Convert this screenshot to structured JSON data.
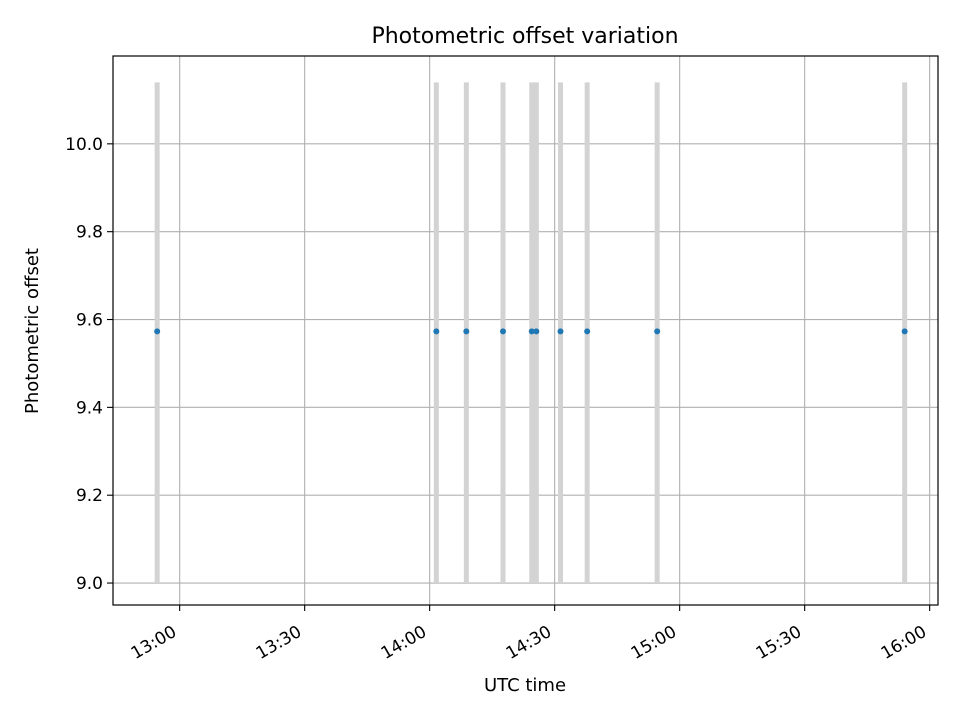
{
  "chart_data": {
    "type": "scatter",
    "title": "Photometric offset variation",
    "xlabel": "UTC time",
    "ylabel": "Photometric offset",
    "x_unit": "minutes_since_midnight_utc",
    "xlim": [
      12.7,
      16.0
    ],
    "xlim_minutes": [
      764,
      962
    ],
    "ylim": [
      8.95,
      10.2
    ],
    "grid": true,
    "x_ticks": [
      {
        "value": 780,
        "label": "13:00"
      },
      {
        "value": 810,
        "label": "13:30"
      },
      {
        "value": 840,
        "label": "14:00"
      },
      {
        "value": 870,
        "label": "14:30"
      },
      {
        "value": 900,
        "label": "15:00"
      },
      {
        "value": 930,
        "label": "15:30"
      },
      {
        "value": 960,
        "label": "16:00"
      }
    ],
    "y_ticks": [
      {
        "value": 9.0,
        "label": "9.0"
      },
      {
        "value": 9.2,
        "label": "9.2"
      },
      {
        "value": 9.4,
        "label": "9.4"
      },
      {
        "value": 9.6,
        "label": "9.6"
      },
      {
        "value": 9.8,
        "label": "9.8"
      },
      {
        "value": 10.0,
        "label": "10.0"
      }
    ],
    "points_color": "#1f77b4",
    "errorbar_color": "#d3d3d3",
    "series": [
      {
        "name": "Photometric offset",
        "x": [
          774.6,
          841.6,
          848.8,
          857.6,
          864.5,
          865.6,
          871.4,
          877.8,
          894.6,
          954.0
        ],
        "y": [
          9.573,
          9.573,
          9.573,
          9.573,
          9.573,
          9.573,
          9.573,
          9.573,
          9.573,
          9.573
        ],
        "yerr_low": [
          9.0,
          9.0,
          9.0,
          9.0,
          9.0,
          9.0,
          9.0,
          9.0,
          9.0,
          9.0
        ],
        "yerr_high": [
          10.14,
          10.14,
          10.14,
          10.14,
          10.14,
          10.14,
          10.14,
          10.14,
          10.14,
          10.14
        ]
      }
    ]
  }
}
